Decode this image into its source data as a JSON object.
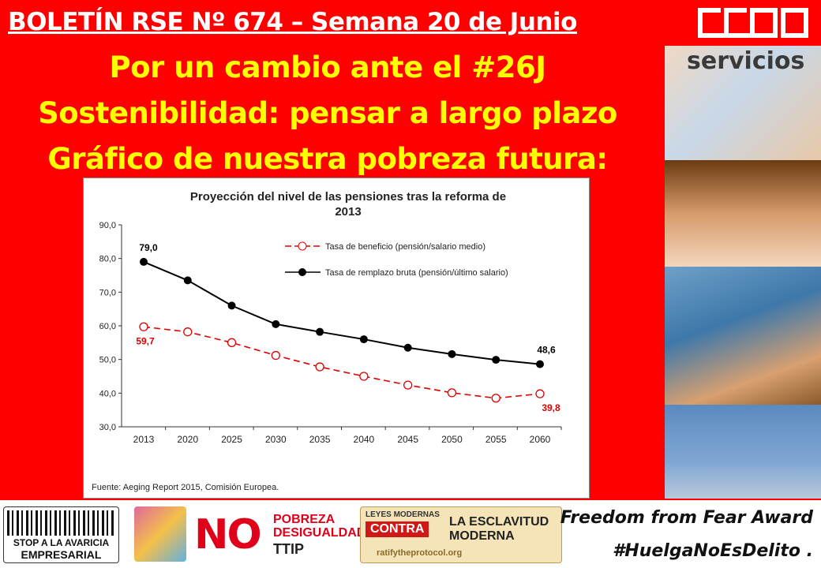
{
  "header": {
    "title": "BOLETÍN RSE Nº 674 – Semana 20 de Junio",
    "line1": "Por un cambio ante el #26J",
    "line2": "Sostenibilidad: pensar a largo plazo",
    "line3": "Gráfico de nuestra pobreza futura:"
  },
  "side": {
    "art_title": "servicios"
  },
  "chart_data": {
    "type": "line",
    "title": "Proyección del nivel de las pensiones tras la reforma de 2013",
    "title_lines": [
      "Proyección del nivel de las pensiones tras la reforma de",
      "2013"
    ],
    "categories": [
      "2013",
      "2020",
      "2025",
      "2030",
      "2035",
      "2040",
      "2045",
      "2050",
      "2055",
      "2060"
    ],
    "ylim": [
      30,
      90
    ],
    "yticks": [
      "30,0",
      "40,0",
      "50,0",
      "60,0",
      "70,0",
      "80,0",
      "90,0"
    ],
    "grid": false,
    "legend_position": "top-right",
    "series": [
      {
        "name": "Tasa de beneficio (pensión/salario medio)",
        "values": [
          59.7,
          58.2,
          55.0,
          51.2,
          47.8,
          45.0,
          42.4,
          40.1,
          38.5,
          39.8
        ],
        "color": "#e00000",
        "style": "dashed-hollow",
        "labels": {
          "first": "59,7",
          "last": "39,8"
        }
      },
      {
        "name": "Tasa de remplazo bruta (pensión/último salario)",
        "values": [
          79.0,
          73.5,
          66.0,
          60.5,
          58.2,
          56.0,
          53.5,
          51.6,
          49.9,
          48.6
        ],
        "color": "#000000",
        "style": "solid-filled",
        "labels": {
          "first": "79,0",
          "last": "48,6"
        }
      }
    ],
    "source": "Fuente: Aeging Report 2015, Comisión Europea."
  },
  "footer": {
    "badge1_line1": "STOP A LA AVARICIA",
    "badge1_line2": "EMPRESARIAL",
    "badge3_no": "NO",
    "badge3_pd": "POBREZA DESIGUALDAD",
    "badge3_ttip": "TTIP",
    "badge4_a": "LEYES MODERNAS",
    "badge4_b": "CONTRA",
    "badge4_c": "LA ESCLAVITUD MODERNA",
    "badge4_d": "ratifytheprotocol.org",
    "right_line1": "Freedom from Fear Award",
    "right_line2": "#HuelgaNoEsDelito ."
  },
  "colors": {
    "background": "#ff0000",
    "headline": "#ffff00",
    "title": "#ffffff"
  }
}
